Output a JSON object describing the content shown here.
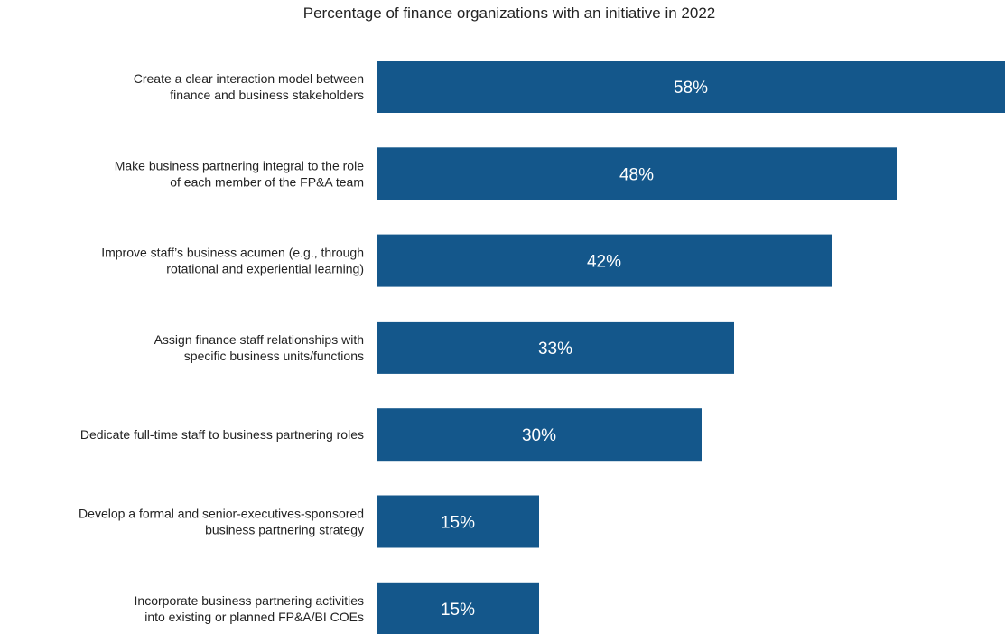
{
  "chart_data": {
    "type": "bar",
    "orientation": "horizontal",
    "title": "Percentage of finance organizations with an initiative in 2022",
    "categories": [
      [
        "Create a clear interaction model between",
        "finance and business stakeholders"
      ],
      [
        "Make business partnering integral to the role",
        "of each member of the FP&A team"
      ],
      [
        "Improve staff’s business acumen (e.g., through",
        "rotational and experiential learning)"
      ],
      [
        "Assign finance staff relationships with",
        "specific business units/functions"
      ],
      [
        "Dedicate full-time staff to business partnering roles"
      ],
      [
        "Develop a formal and senior-executives-sponsored",
        "business partnering strategy"
      ],
      [
        "Incorporate business partnering activities",
        "into existing or planned FP&A/BI COEs"
      ]
    ],
    "values": [
      58,
      48,
      42,
      33,
      30,
      15,
      15
    ],
    "data_labels": [
      "58%",
      "48%",
      "42%",
      "33%",
      "30%",
      "15%",
      "15%"
    ],
    "xlim": [
      0,
      58
    ],
    "grid": false,
    "bar_color": "#14578b",
    "label_color": "#ffffff"
  }
}
